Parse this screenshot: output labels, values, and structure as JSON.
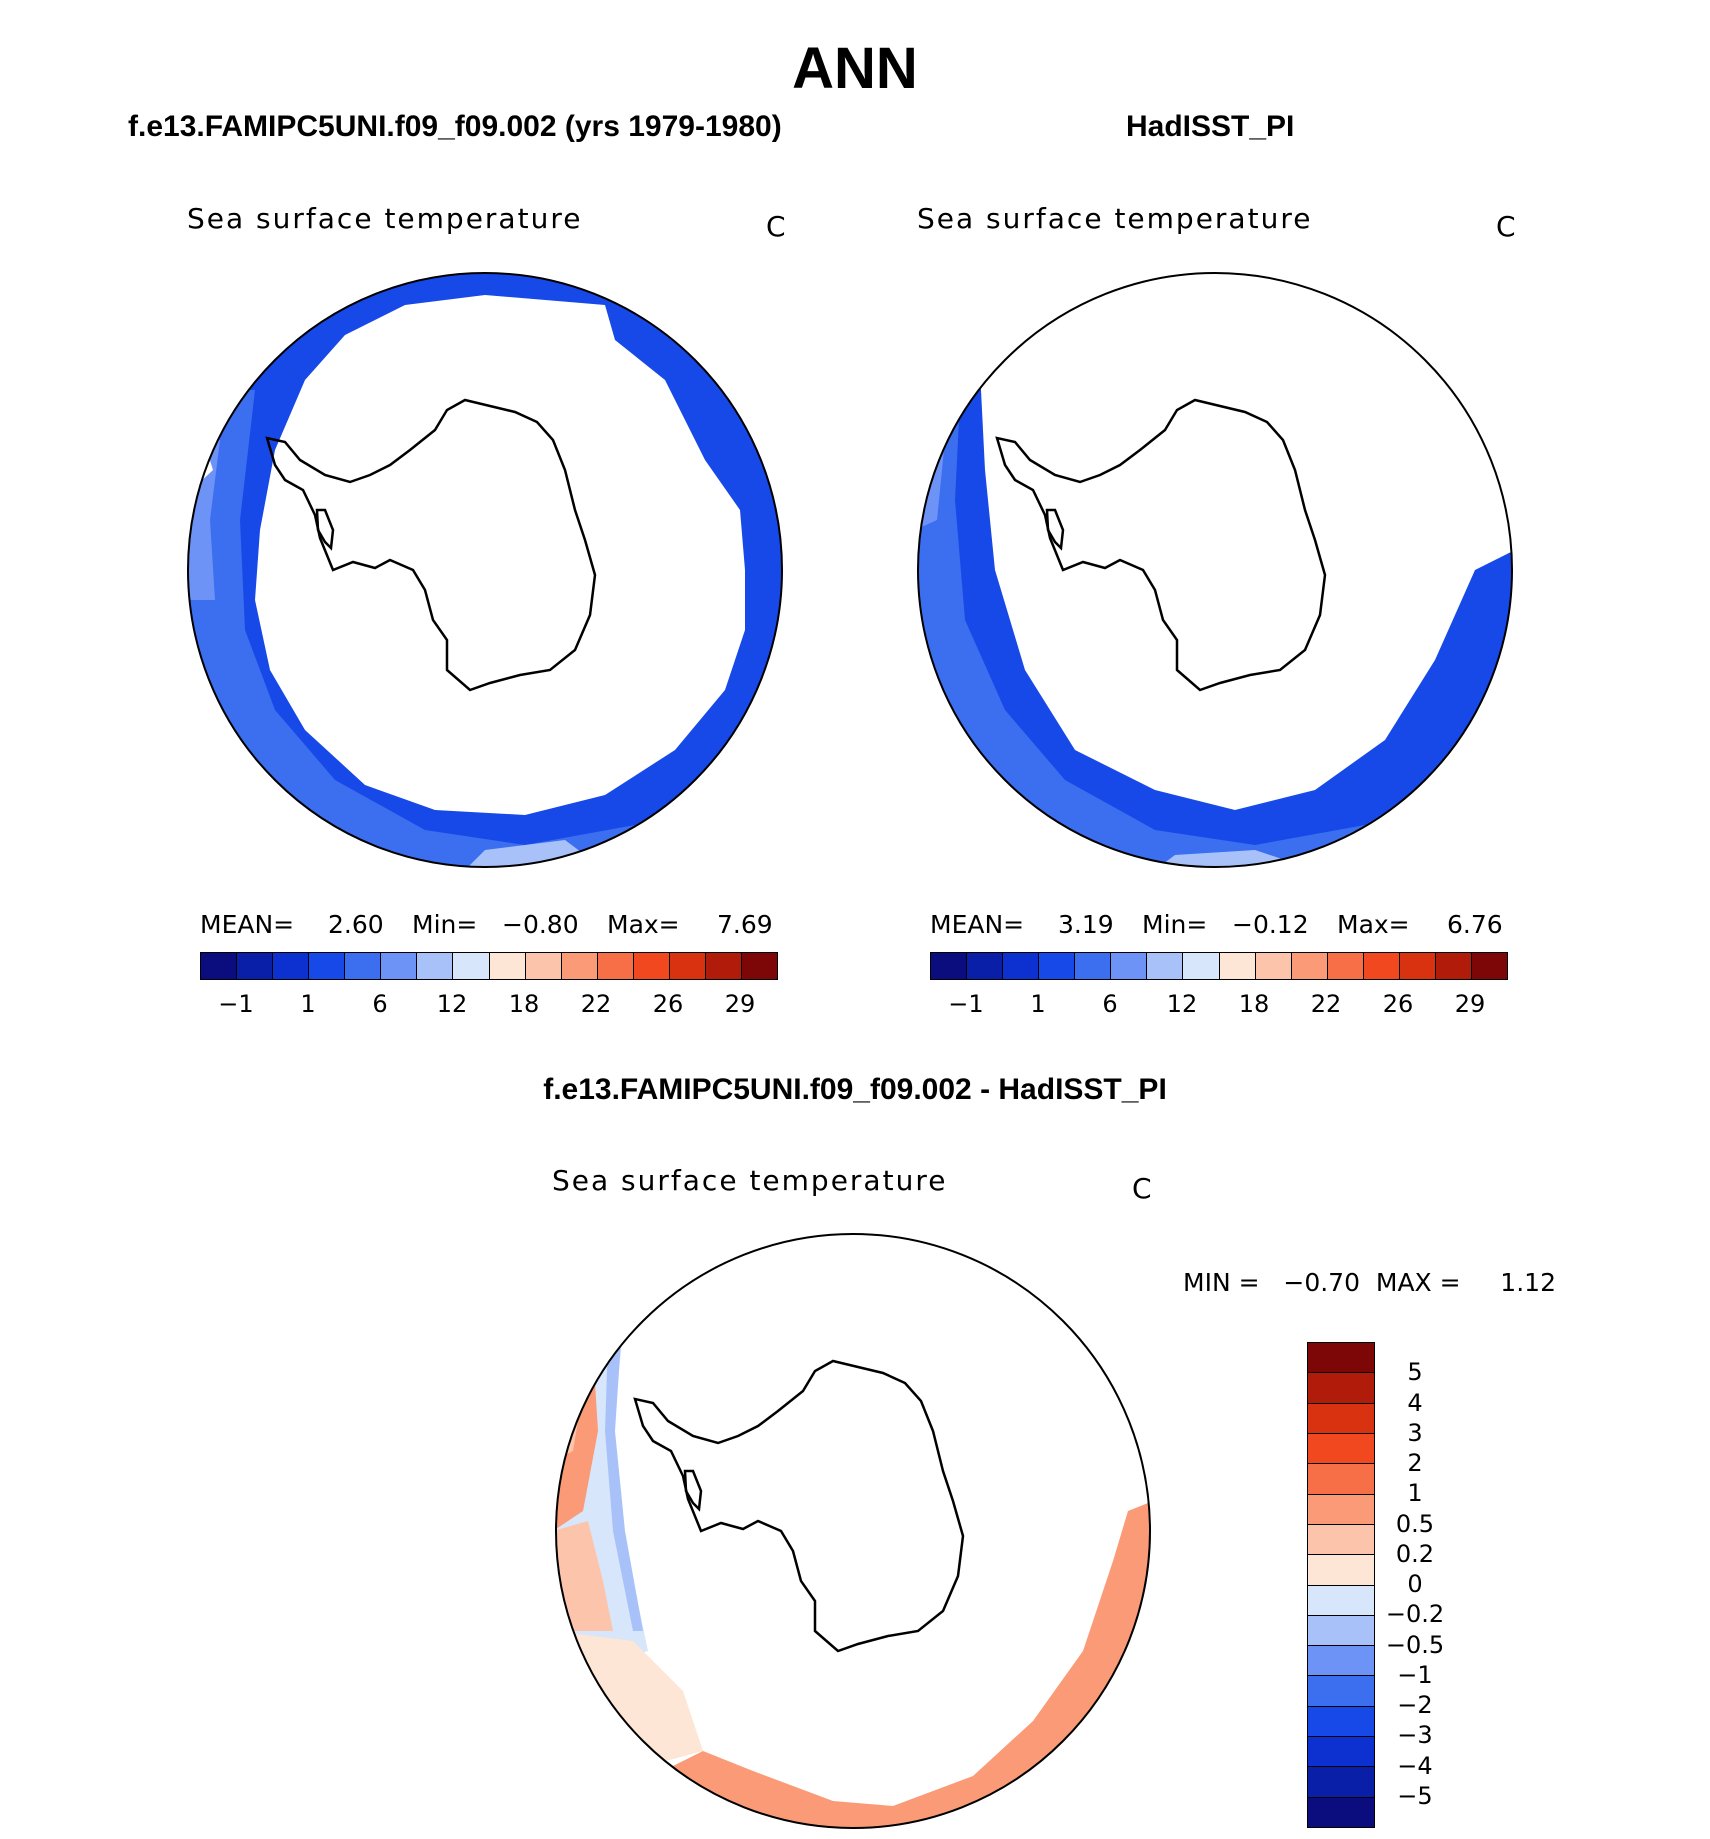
{
  "figure": {
    "season": "ANN"
  },
  "panels": {
    "model": {
      "title": "f.e13.FAMIPC5UNI.f09_f09.002 (yrs 1979-1980)",
      "variable": "Sea surface temperature",
      "units": "C",
      "mean_label": "MEAN=",
      "mean": "2.60",
      "min_label": "Min=",
      "min": "−0.80",
      "max_label": "Max=",
      "max": "7.69"
    },
    "obs": {
      "title": "HadISST_PI",
      "variable": "Sea surface temperature",
      "units": "C",
      "mean_label": "MEAN=",
      "mean": "3.19",
      "min_label": "Min=",
      "min": "−0.12",
      "max_label": "Max=",
      "max": "6.76"
    },
    "diff": {
      "title": "f.e13.FAMIPC5UNI.f09_f09.002 - HadISST_PI",
      "variable": "Sea surface temperature",
      "units": "C",
      "minmax_text": "MIN =   −0.70  MAX =     1.12"
    }
  },
  "colorbar_abs": {
    "colors": [
      "#0b0d7e",
      "#0a1fa8",
      "#0c31d0",
      "#1749e8",
      "#3c6ef0",
      "#6d93f6",
      "#a8c2f9",
      "#d7e6fb",
      "#fde6d5",
      "#fcc4aa",
      "#fa9a76",
      "#f76f47",
      "#f1481f",
      "#d93210",
      "#b01b0a",
      "#7d0606"
    ],
    "tick_labels": [
      "−1",
      "1",
      "6",
      "12",
      "18",
      "22",
      "26",
      "29"
    ]
  },
  "colorbar_diff": {
    "colors": [
      "#7d0606",
      "#b01b0a",
      "#d93210",
      "#f1481f",
      "#f76f47",
      "#fa9a76",
      "#fcc4aa",
      "#fde6d5",
      "#d7e6fb",
      "#a8c2f9",
      "#6d93f6",
      "#3c6ef0",
      "#1749e8",
      "#0c31d0",
      "#0a1fa8",
      "#0b0d7e"
    ],
    "tick_labels": [
      "5",
      "4",
      "3",
      "2",
      "1",
      "0.5",
      "0.2",
      "0",
      "−0.2",
      "−0.5",
      "−1",
      "−2",
      "−3",
      "−4",
      "−5"
    ]
  },
  "map_colors": {
    "ocean_dark": "#1749e8",
    "ocean_mid": "#3c6ef0",
    "ocean_light": "#6d93f6",
    "ocean_pale": "#a8c2f9",
    "diff_warm": "#fa9a76",
    "diff_warm_light": "#fcc4aa",
    "diff_pale": "#fde6d5",
    "diff_cool": "#d7e6fb",
    "diff_cool2": "#a8c2f9"
  }
}
